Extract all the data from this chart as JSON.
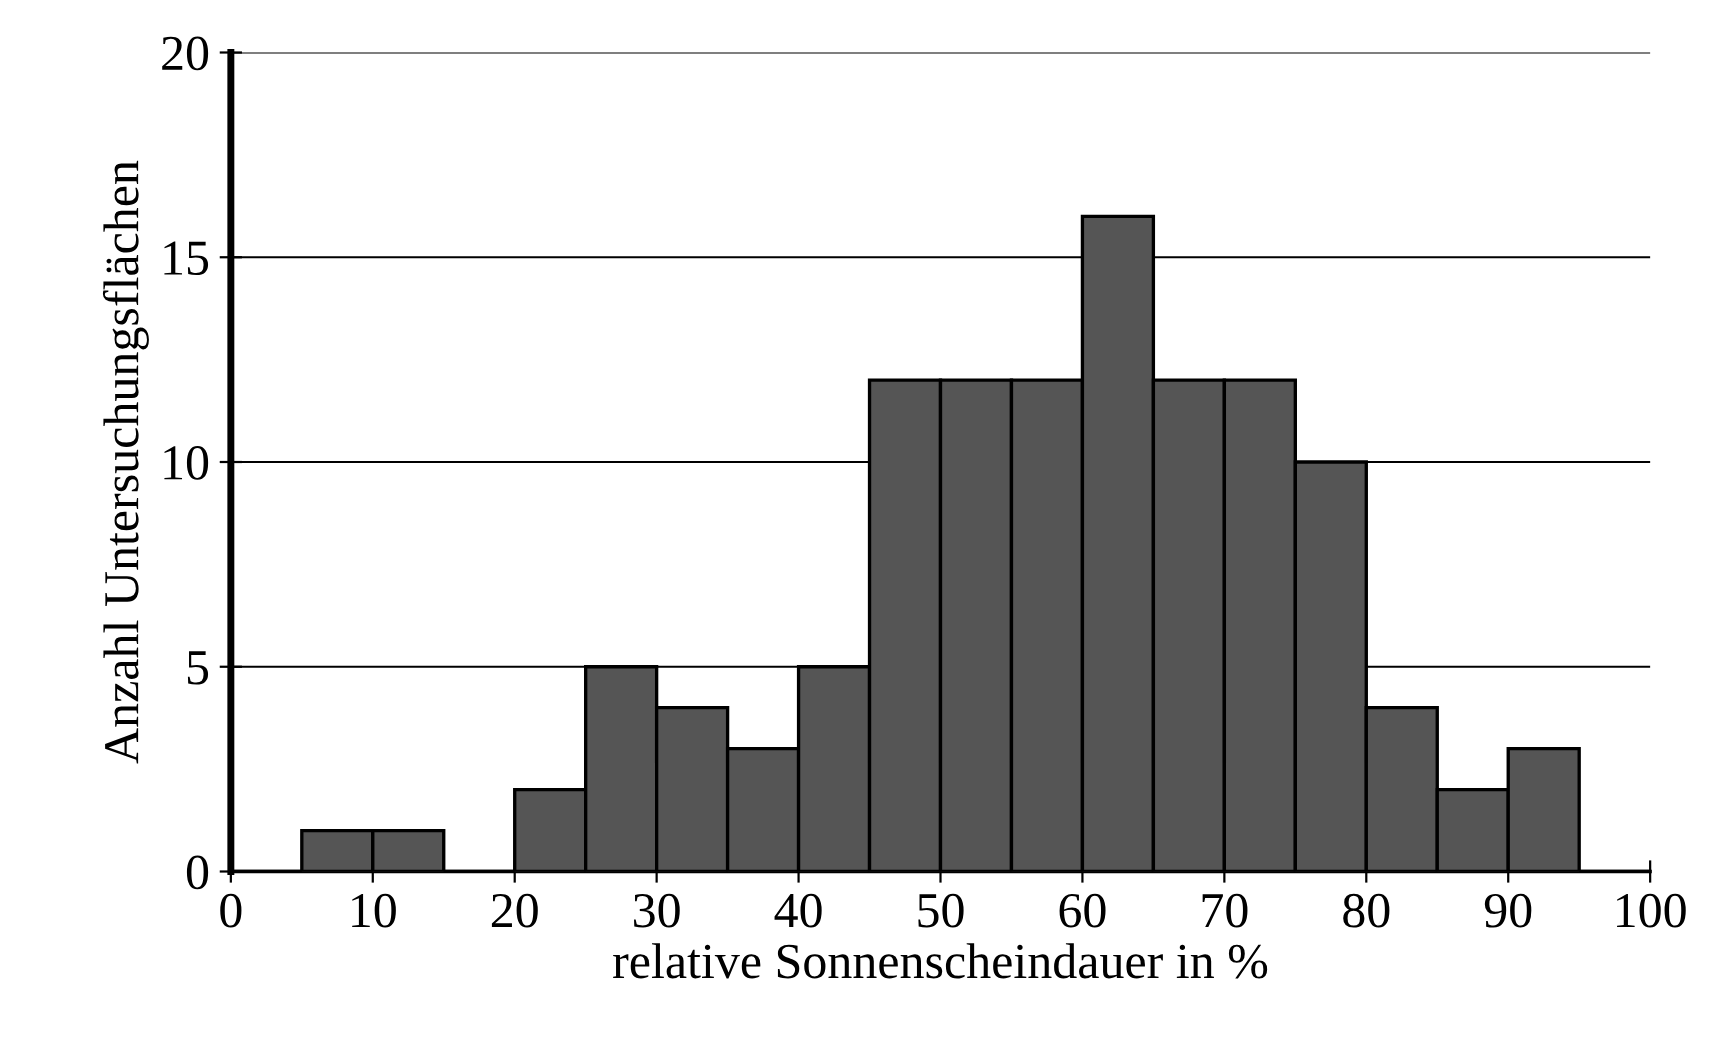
{
  "chart_data": {
    "type": "histogram",
    "xlabel": "relative Sonnenscheindauer in %",
    "ylabel": "Anzahl Untersuchungsflächen",
    "bins": [
      0,
      5,
      10,
      15,
      20,
      25,
      30,
      35,
      40,
      45,
      50,
      55,
      60,
      65,
      70,
      75,
      80,
      85,
      90,
      95,
      100
    ],
    "values": [
      0,
      1,
      1,
      0,
      2,
      5,
      4,
      3,
      5,
      12,
      12,
      12,
      16,
      12,
      12,
      10,
      4,
      2,
      3,
      0
    ],
    "color": "#555555",
    "xlim": [
      0,
      100
    ],
    "xticks": [
      0,
      10,
      20,
      30,
      40,
      50,
      60,
      70,
      80,
      90,
      100
    ],
    "ylim": [
      0,
      20
    ],
    "yticks": [
      0,
      5,
      10,
      15,
      20
    ],
    "grid": "y",
    "legend": false
  }
}
